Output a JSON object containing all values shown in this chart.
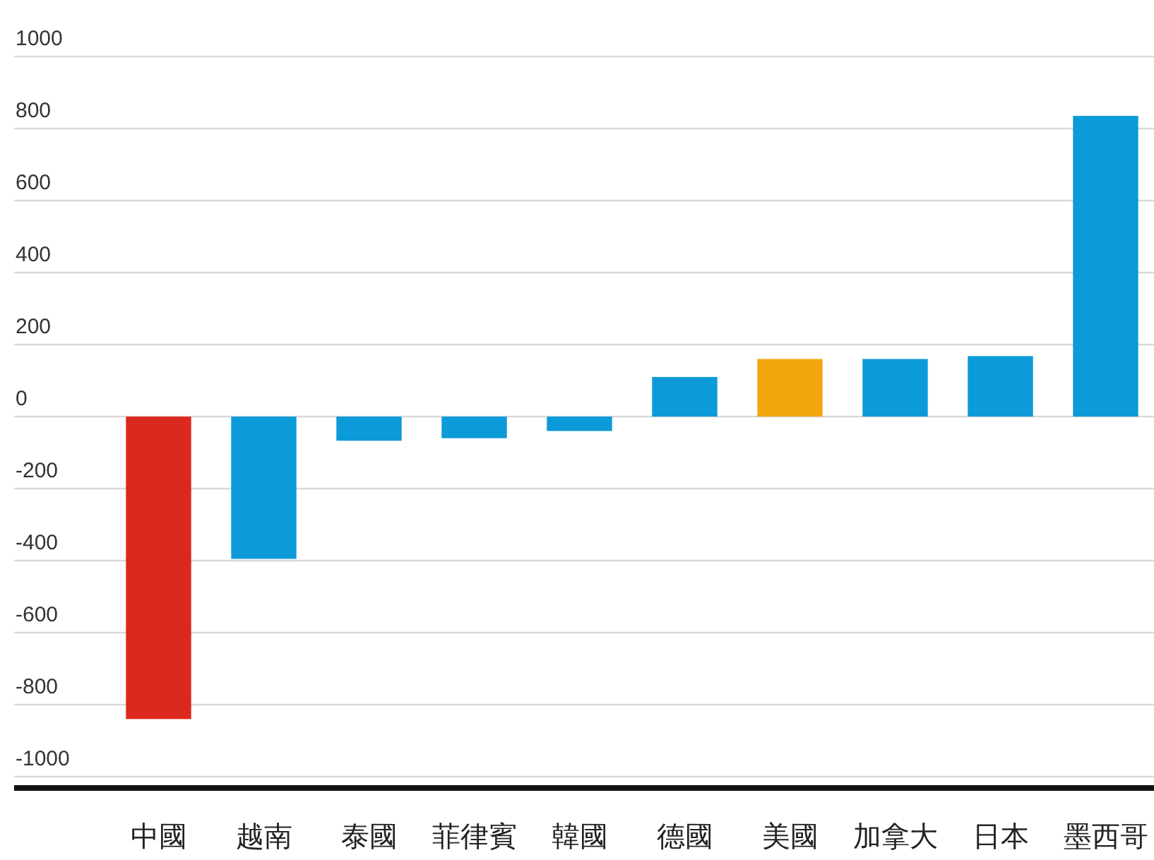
{
  "chart_data": {
    "type": "bar",
    "categories": [
      "中國",
      "越南",
      "泰國",
      "菲律賓",
      "韓國",
      "德國",
      "美國",
      "加拿大",
      "日本",
      "墨西哥"
    ],
    "values": [
      -840,
      -395,
      -67,
      -60,
      -40,
      110,
      160,
      160,
      168,
      835
    ],
    "colors": [
      "#dc291e",
      "#0c9ad9",
      "#0c9ad9",
      "#0c9ad9",
      "#0c9ad9",
      "#0c9ad9",
      "#f2a60d",
      "#0c9ad9",
      "#0c9ad9",
      "#0c9ad9"
    ],
    "ylim": [
      -1000,
      1000
    ],
    "yticks": [
      -1000,
      -800,
      -600,
      -400,
      -200,
      0,
      200,
      400,
      600,
      800,
      1000
    ],
    "grid": "y"
  }
}
